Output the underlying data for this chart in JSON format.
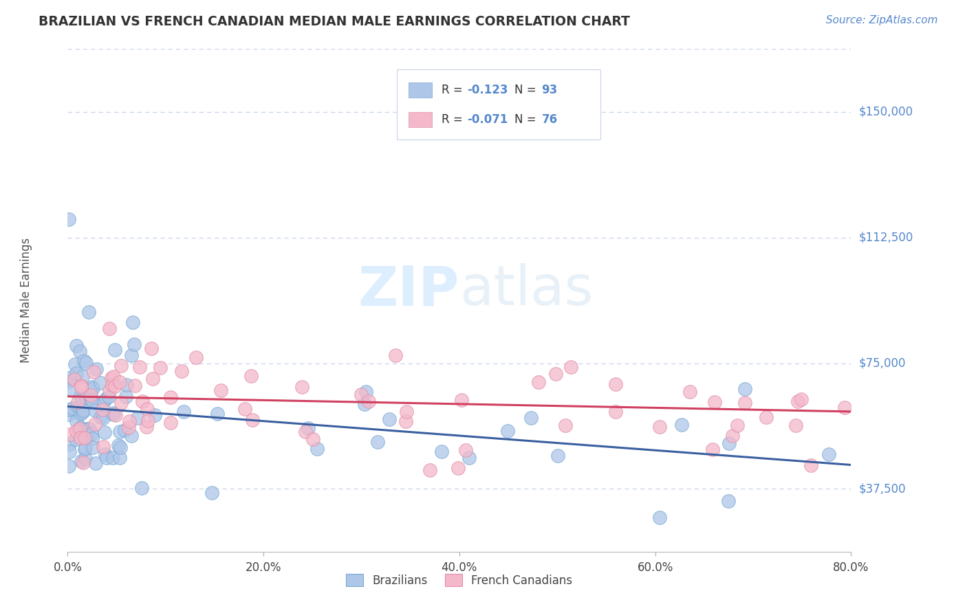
{
  "title": "BRAZILIAN VS FRENCH CANADIAN MEDIAN MALE EARNINGS CORRELATION CHART",
  "source_text": "Source: ZipAtlas.com",
  "ylabel": "Median Male Earnings",
  "xlabel_ticks": [
    "0.0%",
    "20.0%",
    "40.0%",
    "60.0%",
    "80.0%"
  ],
  "xlabel_tick_vals": [
    0.0,
    0.2,
    0.4,
    0.6,
    0.8
  ],
  "ytick_labels": [
    "$37,500",
    "$75,000",
    "$112,500",
    "$150,000"
  ],
  "ytick_values": [
    37500,
    75000,
    112500,
    150000
  ],
  "ymin": 18750,
  "ymax": 168750,
  "xmin": 0.0,
  "xmax": 0.8,
  "blue_R": -0.123,
  "blue_N": 93,
  "pink_R": -0.071,
  "pink_N": 76,
  "blue_color": "#aec6e8",
  "pink_color": "#f4b8ca",
  "blue_edge_color": "#7aaad4",
  "pink_edge_color": "#e090aa",
  "blue_line_color": "#3a5fa0",
  "pink_line_color": "#d04060",
  "title_color": "#333333",
  "source_color": "#5588cc",
  "ytick_color": "#5588cc",
  "watermark_color": "#ddeeff",
  "grid_color": "#c8d4e8",
  "background_color": "#ffffff",
  "legend_label_color": "#5588cc",
  "legend_box_color": "#c8d4e8"
}
